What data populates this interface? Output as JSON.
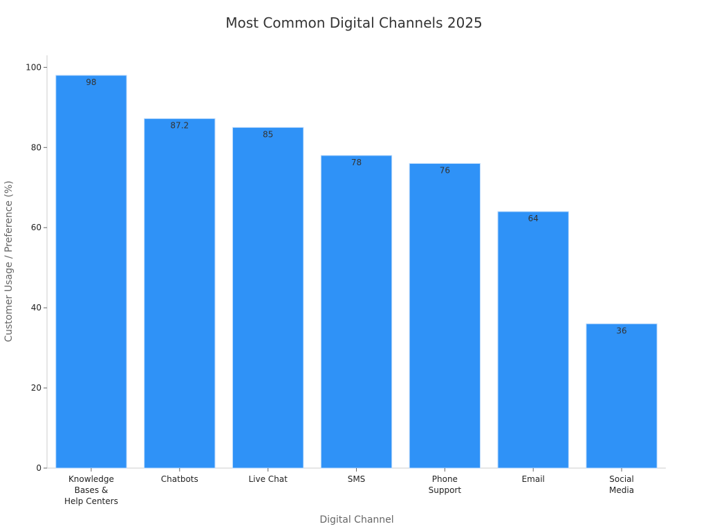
{
  "chart_data": {
    "type": "bar",
    "title": "Most Common Digital Channels 2025",
    "x_label": "Digital Channel",
    "y_label": "Customer Usage / Preference (%)",
    "categories": [
      "Knowledge\nBases &\nHelp Centers",
      "Chatbots",
      "Live Chat",
      "SMS",
      "Phone\nSupport",
      "Email",
      "Social\nMedia"
    ],
    "values": [
      98,
      87.2,
      85,
      78,
      76,
      64,
      36
    ],
    "color": "#2f92f7",
    "ylim": [
      0,
      103
    ],
    "yticks": [
      0,
      20,
      40,
      60,
      80,
      100
    ],
    "grid": false
  }
}
